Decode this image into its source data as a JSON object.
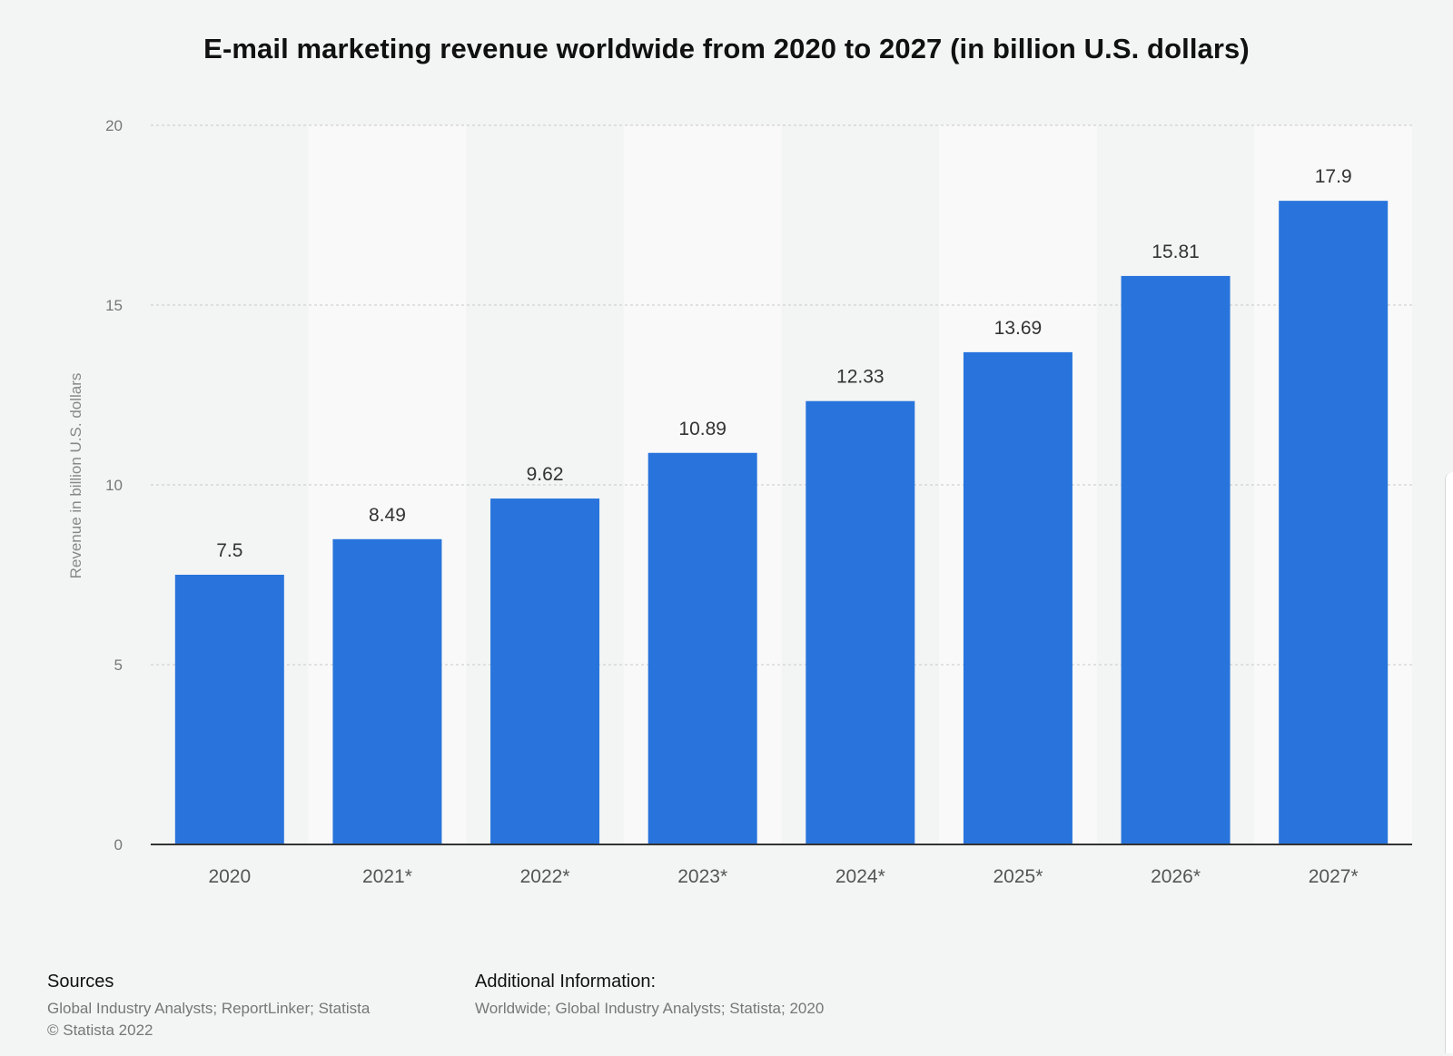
{
  "chart_data": {
    "type": "bar",
    "title": "E-mail marketing revenue worldwide from 2020 to 2027 (in billion U.S. dollars)",
    "xlabel": "",
    "ylabel": "Revenue in billion U.S. dollars",
    "categories": [
      "2020",
      "2021*",
      "2022*",
      "2023*",
      "2024*",
      "2025*",
      "2026*",
      "2027*"
    ],
    "values": [
      7.5,
      8.49,
      9.62,
      10.89,
      12.33,
      13.69,
      15.81,
      17.9
    ],
    "value_labels": [
      "7.5",
      "8.49",
      "9.62",
      "10.89",
      "12.33",
      "13.69",
      "15.81",
      "17.9"
    ],
    "ylim": [
      0,
      20
    ],
    "yticks": [
      0,
      5,
      10,
      15,
      20
    ],
    "grid": true,
    "bar_color": "#2874dc",
    "alternate_band_color": "#f9f9f9"
  },
  "footer": {
    "sources_heading": "Sources",
    "sources_lines": [
      "Global Industry Analysts; ReportLinker; Statista",
      "© Statista 2022"
    ],
    "additional_heading": "Additional Information:",
    "additional_lines": [
      "Worldwide; Global Industry Analysts; Statista; 2020"
    ]
  }
}
